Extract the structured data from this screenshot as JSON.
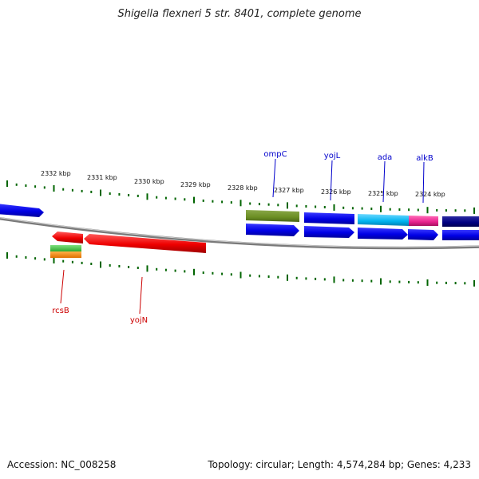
{
  "title": "Shigella flexneri 5 str. 8401, complete genome",
  "footer": {
    "accession": "Accession: NC_008258",
    "summary": "Topology: circular; Length: 4,574,284 bp; Genes: 4,233"
  },
  "ticks": [
    "2332 kbp",
    "2331 kbp",
    "2330 kbp",
    "2329 kbp",
    "2328 kbp",
    "2327 kbp",
    "2326 kbp",
    "2325 kbp",
    "2324 kbp"
  ],
  "gene_labels": {
    "ompC": "ompC",
    "yojL": "yojL",
    "ada": "ada",
    "alkB": "alkB",
    "rcsB": "rcsB",
    "yojN": "yojN"
  },
  "colors": {
    "forward_label": "#0000cc",
    "reverse_label": "#cc0000",
    "blue": "#0000ee",
    "red": "#ee0000",
    "olive": "#6b8e23",
    "cyan": "#00bfff",
    "magenta": "#e8238f",
    "navy": "#000080",
    "tick": "#006400",
    "backbone": "#888888"
  }
}
